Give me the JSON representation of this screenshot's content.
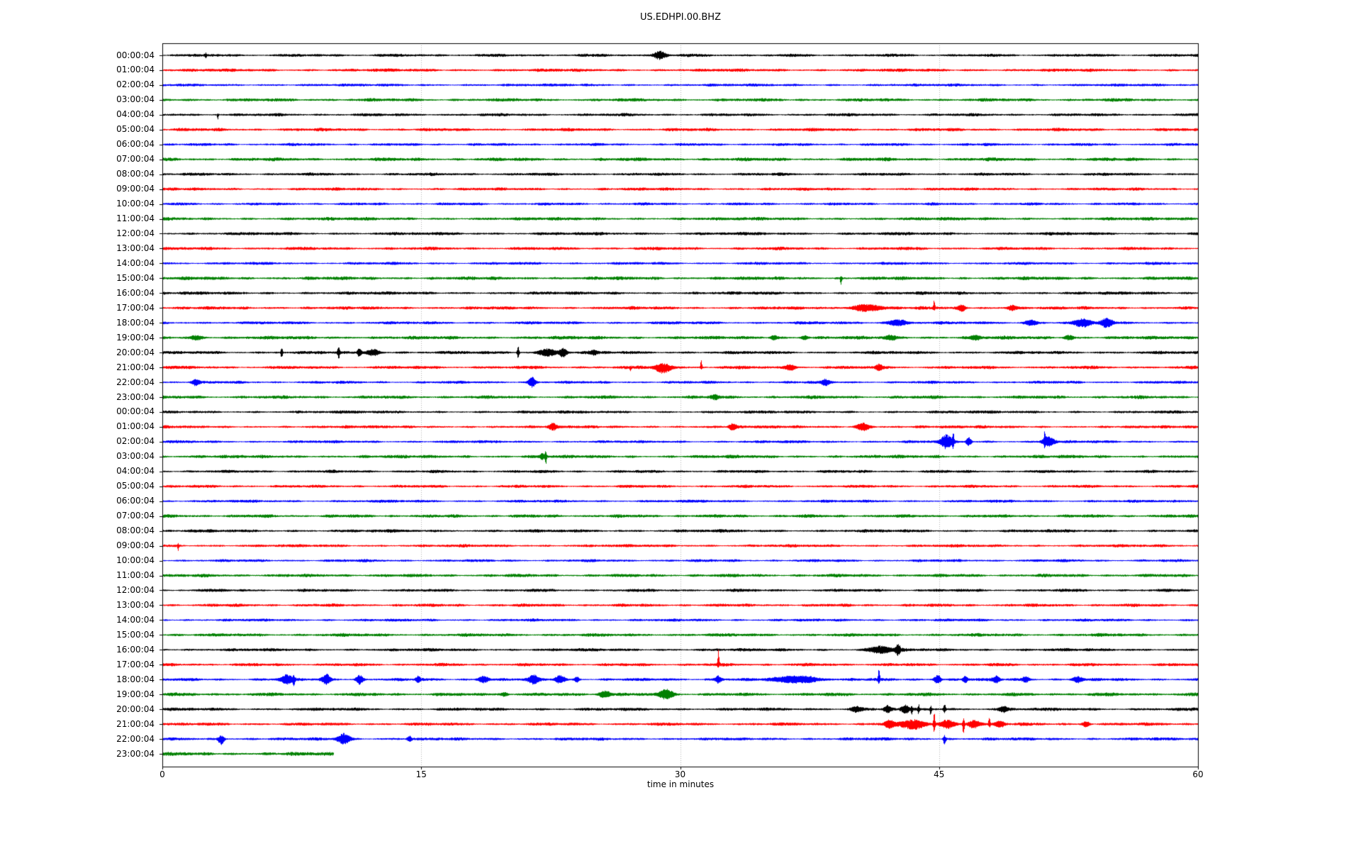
{
  "chart_data": {
    "type": "line",
    "variant": "helicorder-drumplot",
    "title": "US.EDHPI.00.BHZ",
    "xlabel": "time in minutes",
    "xlim": [
      0,
      60
    ],
    "xticks": [
      "0",
      "15",
      "30",
      "45",
      "60"
    ],
    "xtick_values": [
      0,
      15,
      30,
      45,
      60
    ],
    "gridlines_x": [
      15,
      30,
      45
    ],
    "grid_on": true,
    "palette": {
      "black": "#000000",
      "red": "#ff0000",
      "blue": "#0000ff",
      "green": "#008000"
    },
    "rows": [
      {
        "label": "00:00:04",
        "color": "black",
        "start": 0,
        "end": 60,
        "noise": 1.8,
        "events": [
          {
            "t": 2.5,
            "w": 0.1,
            "up": 3,
            "down": 3
          },
          {
            "t": 28.8,
            "w": 0.5,
            "up": 6,
            "down": 6
          }
        ]
      },
      {
        "label": "01:00:04",
        "color": "red",
        "start": 0,
        "end": 60,
        "noise": 1.9,
        "events": []
      },
      {
        "label": "02:00:04",
        "color": "blue",
        "start": 0,
        "end": 60,
        "noise": 1.7,
        "events": []
      },
      {
        "label": "03:00:04",
        "color": "green",
        "start": 0,
        "end": 60,
        "noise": 2.0,
        "events": []
      },
      {
        "label": "04:00:04",
        "color": "black",
        "start": 0,
        "end": 60,
        "noise": 1.8,
        "events": [
          {
            "t": 3.2,
            "w": 0.06,
            "up": 1,
            "down": 7
          }
        ]
      },
      {
        "label": "05:00:04",
        "color": "red",
        "start": 0,
        "end": 60,
        "noise": 1.9,
        "events": []
      },
      {
        "label": "06:00:04",
        "color": "blue",
        "start": 0,
        "end": 60,
        "noise": 1.7,
        "events": []
      },
      {
        "label": "07:00:04",
        "color": "green",
        "start": 0,
        "end": 60,
        "noise": 2.1,
        "events": []
      },
      {
        "label": "08:00:04",
        "color": "black",
        "start": 0,
        "end": 60,
        "noise": 1.8,
        "events": []
      },
      {
        "label": "09:00:04",
        "color": "red",
        "start": 0,
        "end": 60,
        "noise": 1.8,
        "events": []
      },
      {
        "label": "10:00:04",
        "color": "blue",
        "start": 0,
        "end": 60,
        "noise": 1.7,
        "events": []
      },
      {
        "label": "11:00:04",
        "color": "green",
        "start": 0,
        "end": 60,
        "noise": 2.0,
        "events": []
      },
      {
        "label": "12:00:04",
        "color": "black",
        "start": 0,
        "end": 60,
        "noise": 1.9,
        "events": []
      },
      {
        "label": "13:00:04",
        "color": "red",
        "start": 0,
        "end": 60,
        "noise": 1.9,
        "events": []
      },
      {
        "label": "14:00:04",
        "color": "blue",
        "start": 0,
        "end": 60,
        "noise": 1.7,
        "events": []
      },
      {
        "label": "15:00:04",
        "color": "green",
        "start": 0,
        "end": 60,
        "noise": 2.1,
        "events": [
          {
            "t": 39.3,
            "w": 0.06,
            "up": 2,
            "down": 12
          }
        ]
      },
      {
        "label": "16:00:04",
        "color": "black",
        "start": 0,
        "end": 60,
        "noise": 1.9,
        "events": []
      },
      {
        "label": "17:00:04",
        "color": "red",
        "start": 0,
        "end": 60,
        "noise": 1.9,
        "events": [
          {
            "t": 40.8,
            "w": 1.2,
            "up": 5,
            "down": 5
          },
          {
            "t": 44.7,
            "w": 0.07,
            "up": 13,
            "down": 4
          },
          {
            "t": 46.3,
            "w": 0.3,
            "up": 4,
            "down": 4
          },
          {
            "t": 49.2,
            "w": 0.4,
            "up": 4,
            "down": 4
          }
        ]
      },
      {
        "label": "18:00:04",
        "color": "blue",
        "start": 0,
        "end": 60,
        "noise": 1.8,
        "events": [
          {
            "t": 42.6,
            "w": 0.9,
            "up": 4,
            "down": 4
          },
          {
            "t": 50.3,
            "w": 0.5,
            "up": 4,
            "down": 4
          },
          {
            "t": 53.3,
            "w": 0.7,
            "up": 5,
            "down": 5
          },
          {
            "t": 54.7,
            "w": 0.5,
            "up": 6,
            "down": 6
          }
        ]
      },
      {
        "label": "19:00:04",
        "color": "green",
        "start": 0,
        "end": 60,
        "noise": 2.1,
        "events": [
          {
            "t": 2.0,
            "w": 0.5,
            "up": 3,
            "down": 3
          },
          {
            "t": 35.4,
            "w": 0.3,
            "up": 3,
            "down": 3
          },
          {
            "t": 37.2,
            "w": 0.3,
            "up": 3,
            "down": 3
          },
          {
            "t": 42.2,
            "w": 0.4,
            "up": 3,
            "down": 3
          },
          {
            "t": 47.1,
            "w": 0.4,
            "up": 3,
            "down": 3
          },
          {
            "t": 52.5,
            "w": 0.4,
            "up": 3,
            "down": 3
          }
        ]
      },
      {
        "label": "20:00:04",
        "color": "black",
        "start": 0,
        "end": 60,
        "noise": 1.9,
        "events": [
          {
            "t": 6.9,
            "w": 0.08,
            "up": 8,
            "down": 8
          },
          {
            "t": 10.2,
            "w": 0.1,
            "up": 7,
            "down": 7
          },
          {
            "t": 11.4,
            "w": 0.15,
            "up": 6,
            "down": 6
          },
          {
            "t": 12.2,
            "w": 0.5,
            "up": 5,
            "down": 5
          },
          {
            "t": 20.6,
            "w": 0.1,
            "up": 8,
            "down": 8
          },
          {
            "t": 22.3,
            "w": 0.8,
            "up": 5,
            "down": 5
          },
          {
            "t": 23.2,
            "w": 0.3,
            "up": 6,
            "down": 6
          },
          {
            "t": 25.0,
            "w": 0.3,
            "up": 3,
            "down": 3
          }
        ]
      },
      {
        "label": "21:00:04",
        "color": "red",
        "start": 0,
        "end": 60,
        "noise": 1.9,
        "events": [
          {
            "t": 27.1,
            "w": 0.06,
            "up": 1,
            "down": 5
          },
          {
            "t": 29.0,
            "w": 0.7,
            "up": 5,
            "down": 8
          },
          {
            "t": 31.2,
            "w": 0.07,
            "up": 13,
            "down": 3
          },
          {
            "t": 36.4,
            "w": 0.4,
            "up": 4,
            "down": 4
          },
          {
            "t": 41.5,
            "w": 0.3,
            "up": 4,
            "down": 4
          }
        ]
      },
      {
        "label": "22:00:04",
        "color": "blue",
        "start": 0,
        "end": 60,
        "noise": 1.7,
        "events": [
          {
            "t": 1.9,
            "w": 0.3,
            "up": 4,
            "down": 4
          },
          {
            "t": 21.4,
            "w": 0.3,
            "up": 7,
            "down": 7
          },
          {
            "t": 38.4,
            "w": 0.3,
            "up": 4,
            "down": 4
          }
        ]
      },
      {
        "label": "23:00:04",
        "color": "green",
        "start": 0,
        "end": 60,
        "noise": 2.0,
        "events": [
          {
            "t": 32.0,
            "w": 0.3,
            "up": 3,
            "down": 3
          }
        ]
      },
      {
        "label": "00:00:04",
        "color": "black",
        "start": 0,
        "end": 60,
        "noise": 1.8,
        "events": []
      },
      {
        "label": "01:00:04",
        "color": "red",
        "start": 0,
        "end": 60,
        "noise": 1.8,
        "events": [
          {
            "t": 22.6,
            "w": 0.3,
            "up": 4,
            "down": 4
          },
          {
            "t": 33.0,
            "w": 0.3,
            "up": 4,
            "down": 4
          },
          {
            "t": 40.6,
            "w": 0.6,
            "up": 5,
            "down": 5
          }
        ]
      },
      {
        "label": "02:00:04",
        "color": "blue",
        "start": 0,
        "end": 60,
        "noise": 1.7,
        "events": [
          {
            "t": 45.4,
            "w": 0.5,
            "up": 9,
            "down": 9
          },
          {
            "t": 45.8,
            "w": 0.07,
            "up": 14,
            "down": 10
          },
          {
            "t": 46.7,
            "w": 0.2,
            "up": 6,
            "down": 6
          },
          {
            "t": 51.1,
            "w": 0.06,
            "up": 12,
            "down": 6
          },
          {
            "t": 51.3,
            "w": 0.5,
            "up": 7,
            "down": 7
          }
        ]
      },
      {
        "label": "03:00:04",
        "color": "green",
        "start": 0,
        "end": 60,
        "noise": 2.0,
        "events": [
          {
            "t": 22.0,
            "w": 0.2,
            "up": 4,
            "down": 4
          },
          {
            "t": 22.2,
            "w": 0.07,
            "up": 10,
            "down": 12
          }
        ]
      },
      {
        "label": "04:00:04",
        "color": "black",
        "start": 0,
        "end": 60,
        "noise": 1.8,
        "events": []
      },
      {
        "label": "05:00:04",
        "color": "red",
        "start": 0,
        "end": 60,
        "noise": 1.8,
        "events": []
      },
      {
        "label": "06:00:04",
        "color": "blue",
        "start": 0,
        "end": 60,
        "noise": 1.7,
        "events": []
      },
      {
        "label": "07:00:04",
        "color": "green",
        "start": 0,
        "end": 60,
        "noise": 2.0,
        "events": []
      },
      {
        "label": "08:00:04",
        "color": "black",
        "start": 0,
        "end": 60,
        "noise": 1.9,
        "events": []
      },
      {
        "label": "09:00:04",
        "color": "red",
        "start": 0,
        "end": 60,
        "noise": 1.8,
        "events": [
          {
            "t": 0.9,
            "w": 0.06,
            "up": 2,
            "down": 6
          }
        ]
      },
      {
        "label": "10:00:04",
        "color": "blue",
        "start": 0,
        "end": 60,
        "noise": 1.7,
        "events": []
      },
      {
        "label": "11:00:04",
        "color": "green",
        "start": 0,
        "end": 60,
        "noise": 2.0,
        "events": []
      },
      {
        "label": "12:00:04",
        "color": "black",
        "start": 0,
        "end": 60,
        "noise": 1.8,
        "events": []
      },
      {
        "label": "13:00:04",
        "color": "red",
        "start": 0,
        "end": 60,
        "noise": 1.9,
        "events": []
      },
      {
        "label": "14:00:04",
        "color": "blue",
        "start": 0,
        "end": 60,
        "noise": 1.7,
        "events": []
      },
      {
        "label": "15:00:04",
        "color": "green",
        "start": 0,
        "end": 60,
        "noise": 2.0,
        "events": []
      },
      {
        "label": "16:00:04",
        "color": "black",
        "start": 0,
        "end": 60,
        "noise": 1.9,
        "events": [
          {
            "t": 41.6,
            "w": 0.9,
            "up": 5,
            "down": 5
          },
          {
            "t": 42.6,
            "w": 0.2,
            "up": 7,
            "down": 7
          }
        ]
      },
      {
        "label": "17:00:04",
        "color": "red",
        "start": 0,
        "end": 60,
        "noise": 1.9,
        "events": [
          {
            "t": 32.2,
            "w": 0.07,
            "up": 20,
            "down": 4
          }
        ]
      },
      {
        "label": "18:00:04",
        "color": "blue",
        "start": 0,
        "end": 60,
        "noise": 1.8,
        "events": [
          {
            "t": 7.2,
            "w": 0.5,
            "up": 6,
            "down": 6
          },
          {
            "t": 7.6,
            "w": 0.07,
            "up": 4,
            "down": 10
          },
          {
            "t": 9.5,
            "w": 0.35,
            "up": 7,
            "down": 7
          },
          {
            "t": 11.4,
            "w": 0.3,
            "up": 6,
            "down": 6
          },
          {
            "t": 14.8,
            "w": 0.2,
            "up": 4,
            "down": 4
          },
          {
            "t": 18.6,
            "w": 0.45,
            "up": 5,
            "down": 5
          },
          {
            "t": 21.5,
            "w": 0.4,
            "up": 6,
            "down": 6
          },
          {
            "t": 23.0,
            "w": 0.4,
            "up": 6,
            "down": 6
          },
          {
            "t": 24.0,
            "w": 0.2,
            "up": 4,
            "down": 4
          },
          {
            "t": 32.2,
            "w": 0.3,
            "up": 5,
            "down": 5
          },
          {
            "t": 36.8,
            "w": 1.8,
            "up": 5,
            "down": 5
          },
          {
            "t": 41.5,
            "w": 0.08,
            "up": 16,
            "down": 6
          },
          {
            "t": 44.9,
            "w": 0.3,
            "up": 6,
            "down": 6
          },
          {
            "t": 46.5,
            "w": 0.2,
            "up": 5,
            "down": 5
          },
          {
            "t": 48.3,
            "w": 0.3,
            "up": 4,
            "down": 4
          },
          {
            "t": 50.0,
            "w": 0.3,
            "up": 4,
            "down": 4
          },
          {
            "t": 53.0,
            "w": 0.4,
            "up": 4,
            "down": 4
          }
        ]
      },
      {
        "label": "19:00:04",
        "color": "green",
        "start": 0,
        "end": 60,
        "noise": 2.1,
        "events": [
          {
            "t": 19.8,
            "w": 0.3,
            "up": 3,
            "down": 3
          },
          {
            "t": 25.6,
            "w": 0.5,
            "up": 5,
            "down": 5
          },
          {
            "t": 29.2,
            "w": 0.6,
            "up": 6,
            "down": 6
          }
        ]
      },
      {
        "label": "20:00:04",
        "color": "black",
        "start": 0,
        "end": 60,
        "noise": 1.9,
        "events": [
          {
            "t": 40.2,
            "w": 0.5,
            "up": 4,
            "down": 4
          },
          {
            "t": 42.0,
            "w": 0.3,
            "up": 5,
            "down": 5
          },
          {
            "t": 43.0,
            "w": 0.3,
            "up": 5,
            "down": 5
          },
          {
            "t": 43.4,
            "w": 0.07,
            "up": 3,
            "down": 8
          },
          {
            "t": 43.8,
            "w": 0.07,
            "up": 7,
            "down": 7
          },
          {
            "t": 44.5,
            "w": 0.08,
            "up": 4,
            "down": 8
          },
          {
            "t": 45.3,
            "w": 0.1,
            "up": 7,
            "down": 5
          },
          {
            "t": 48.7,
            "w": 0.4,
            "up": 4,
            "down": 4
          }
        ]
      },
      {
        "label": "21:00:04",
        "color": "red",
        "start": 0,
        "end": 60,
        "noise": 1.9,
        "events": [
          {
            "t": 42.1,
            "w": 0.4,
            "up": 6,
            "down": 6
          },
          {
            "t": 43.5,
            "w": 1.0,
            "up": 5,
            "down": 7
          },
          {
            "t": 44.7,
            "w": 0.08,
            "up": 16,
            "down": 12
          },
          {
            "t": 45.5,
            "w": 0.6,
            "up": 6,
            "down": 6
          },
          {
            "t": 46.4,
            "w": 0.08,
            "up": 10,
            "down": 20
          },
          {
            "t": 47.0,
            "w": 0.5,
            "up": 6,
            "down": 6
          },
          {
            "t": 47.9,
            "w": 0.08,
            "up": 10,
            "down": 5
          },
          {
            "t": 48.5,
            "w": 0.4,
            "up": 4,
            "down": 4
          },
          {
            "t": 53.5,
            "w": 0.3,
            "up": 4,
            "down": 4
          }
        ]
      },
      {
        "label": "22:00:04",
        "color": "blue",
        "start": 0,
        "end": 60,
        "noise": 1.8,
        "events": [
          {
            "t": 3.4,
            "w": 0.25,
            "up": 5,
            "down": 9
          },
          {
            "t": 10.5,
            "w": 0.5,
            "up": 8,
            "down": 8
          },
          {
            "t": 14.3,
            "w": 0.2,
            "up": 4,
            "down": 4
          },
          {
            "t": 45.3,
            "w": 0.12,
            "up": 5,
            "down": 8
          }
        ]
      },
      {
        "label": "23:00:04",
        "color": "green",
        "start": 0,
        "end": 9.9,
        "noise": 2.3,
        "events": []
      }
    ]
  }
}
